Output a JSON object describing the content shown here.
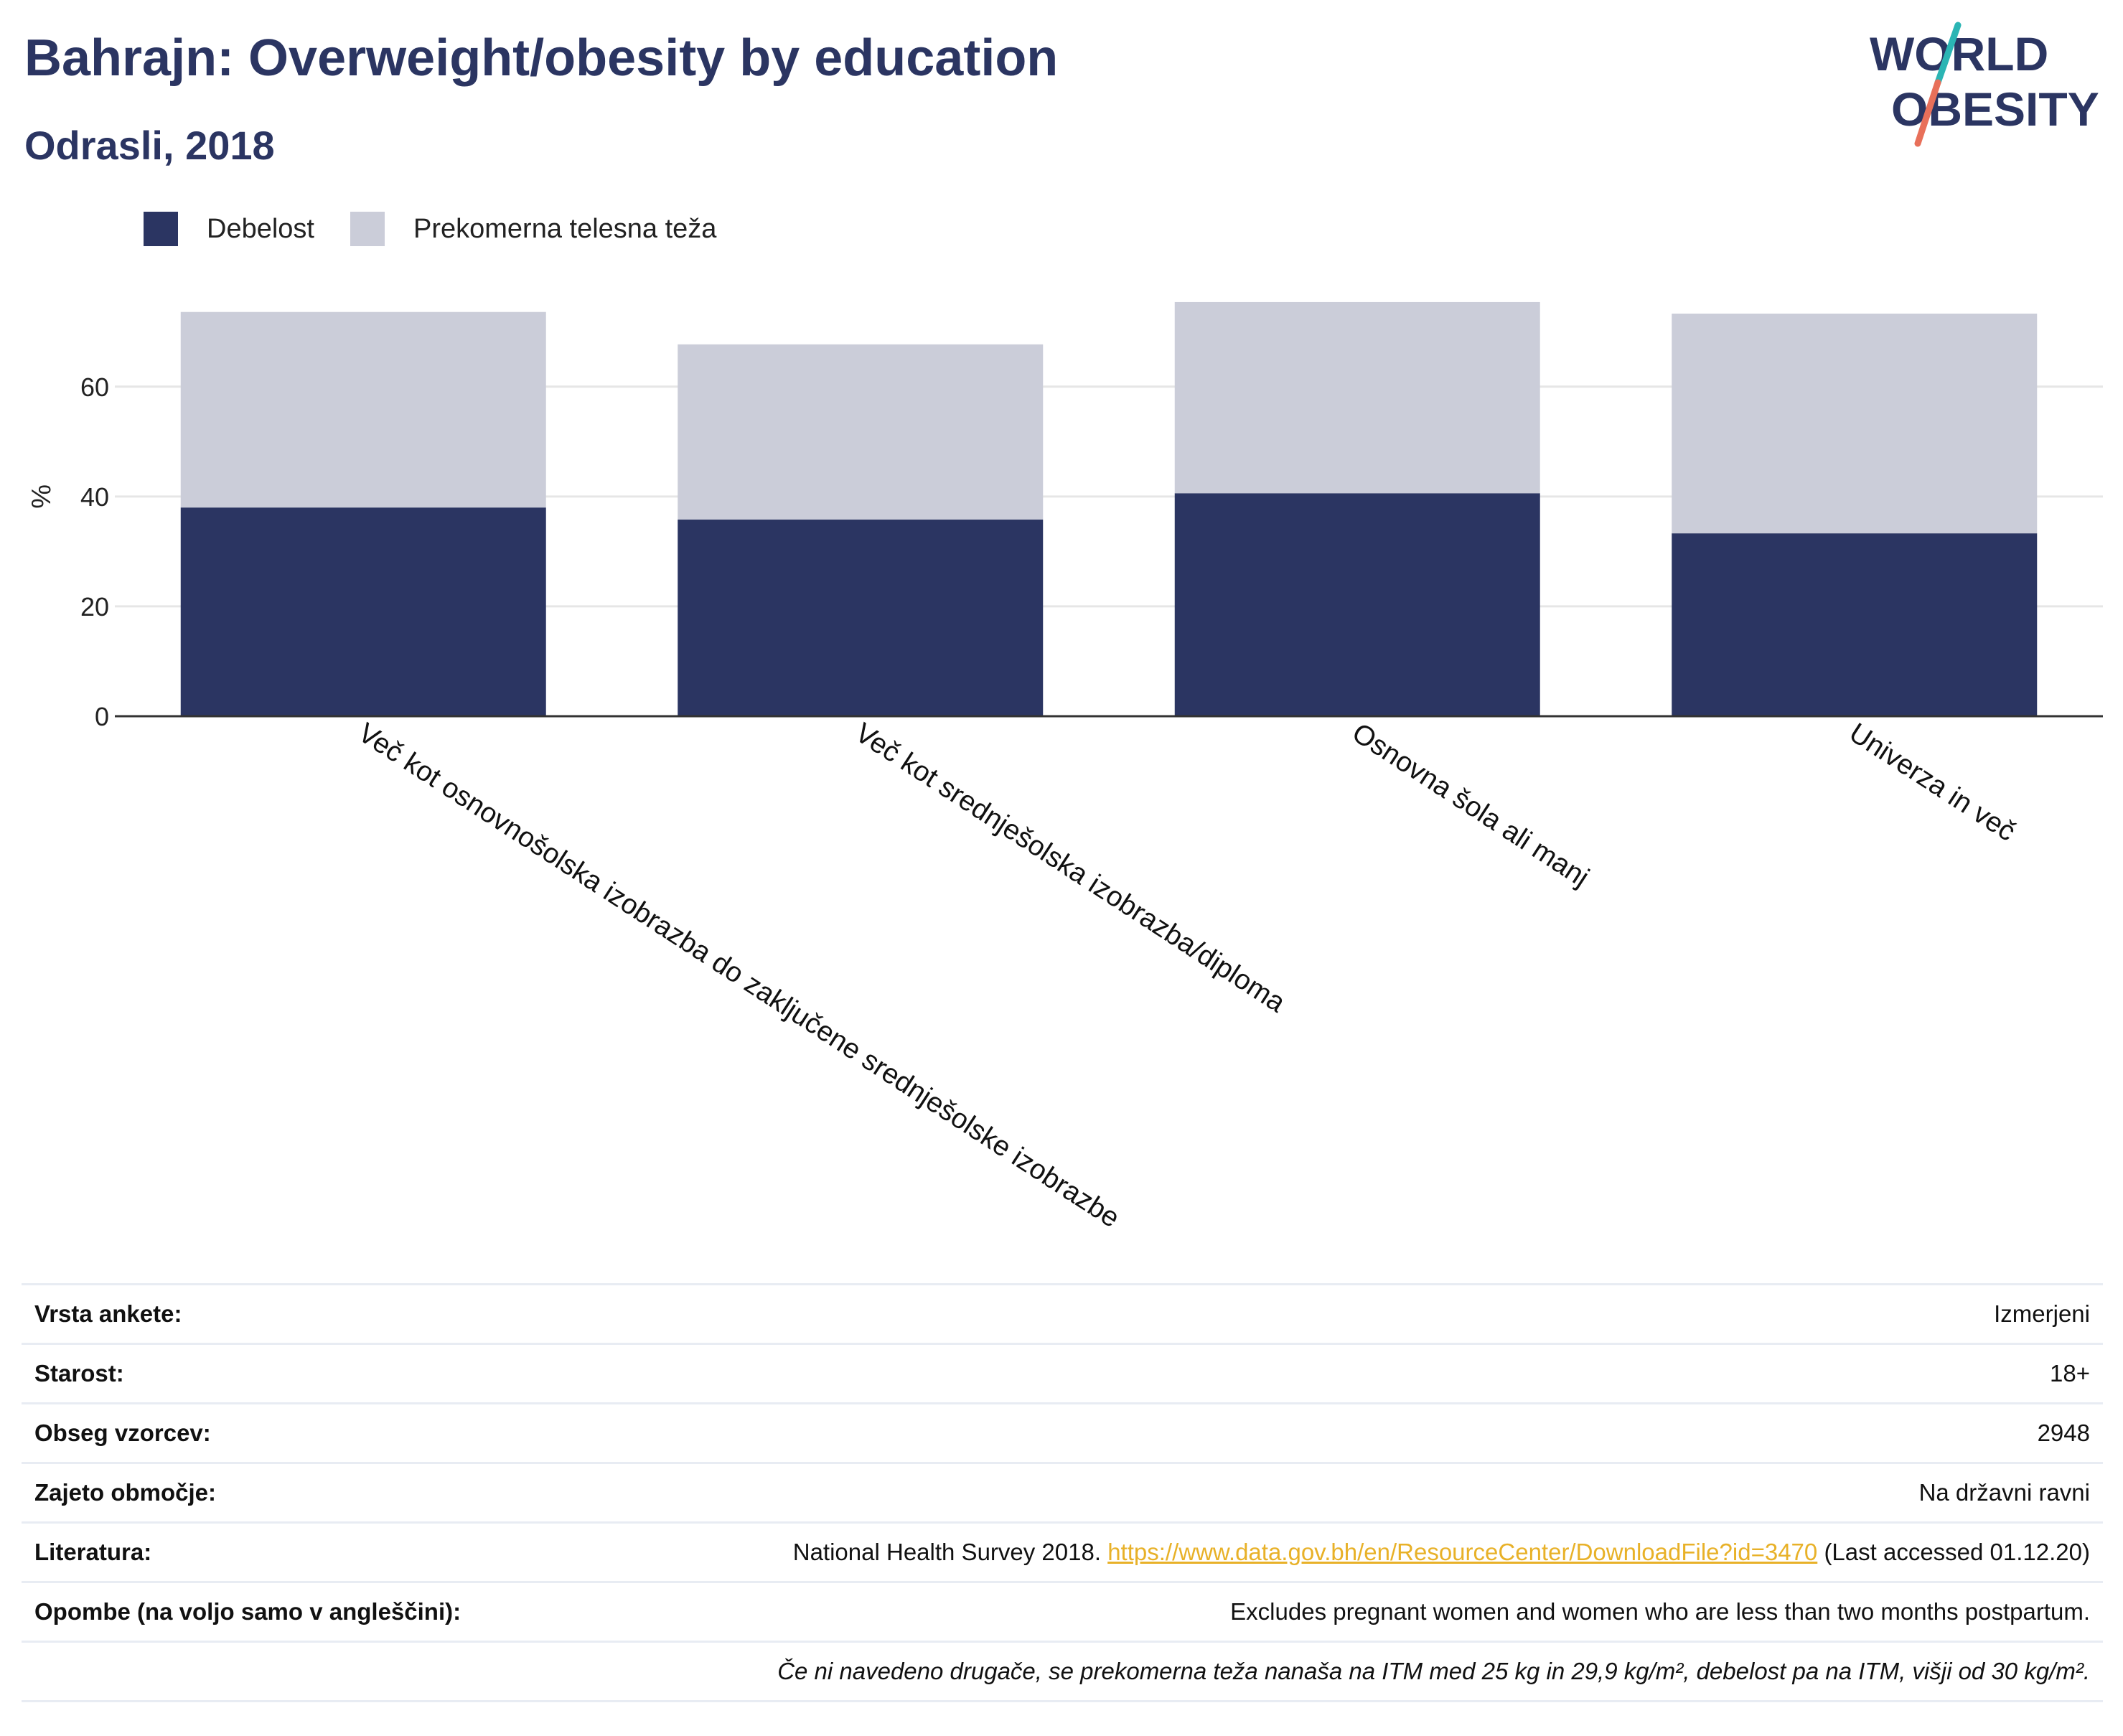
{
  "header": {
    "title": "Bahrajn: Overweight/obesity by education",
    "subtitle": "Odrasli, 2018"
  },
  "logo": {
    "line1": "WORLD",
    "line2": "OBESITY"
  },
  "colors": {
    "obesity": "#2b3562",
    "overweight": "#cbcdd9",
    "axis": "#333333",
    "grid": "#e6e6e6",
    "link": "#e8b128"
  },
  "chart_data": {
    "type": "bar",
    "stacked": true,
    "categories": [
      "Več kot osnovnošolska izobrazba do zaključene srednješolske izobrazbe",
      "Več kot srednješolska izobrazba/diploma",
      "Osnovna šola ali manj",
      "Univerza in več"
    ],
    "series": [
      {
        "name": "Debelost",
        "values": [
          38.0,
          35.8,
          40.6,
          33.3
        ]
      },
      {
        "name": "Prekomerna telesna teža",
        "values": [
          35.6,
          31.9,
          34.8,
          40.0
        ]
      }
    ],
    "ylabel": "%",
    "ylim": [
      0,
      75
    ],
    "yticks": [
      0,
      20,
      40,
      60
    ],
    "grid": true,
    "legend_position": "top-left"
  },
  "info": {
    "rows": [
      {
        "key": "Vrsta ankete:",
        "value": "Izmerjeni"
      },
      {
        "key": "Starost:",
        "value": "18+"
      },
      {
        "key": "Obseg vzorcev:",
        "value": "2948"
      },
      {
        "key": "Zajeto območje:",
        "value": "Na državni ravni"
      }
    ],
    "literature": {
      "key": "Literatura:",
      "prefix": "National Health Survey 2018.",
      "link": "https://www.data.gov.bh/en/ResourceCenter/DownloadFile?id=3470",
      "suffix": "(Last accessed 01.12.20)"
    },
    "notes": {
      "key": "Opombe (na voljo samo v angleščini):",
      "value": "Excludes pregnant women and women who are less than two months postpartum."
    },
    "footnote": "Če ni navedeno drugače, se prekomerna teža nanaša na ITM med 25 kg in 29,9 kg/m², debelost pa na ITM, višji od 30 kg/m²."
  }
}
